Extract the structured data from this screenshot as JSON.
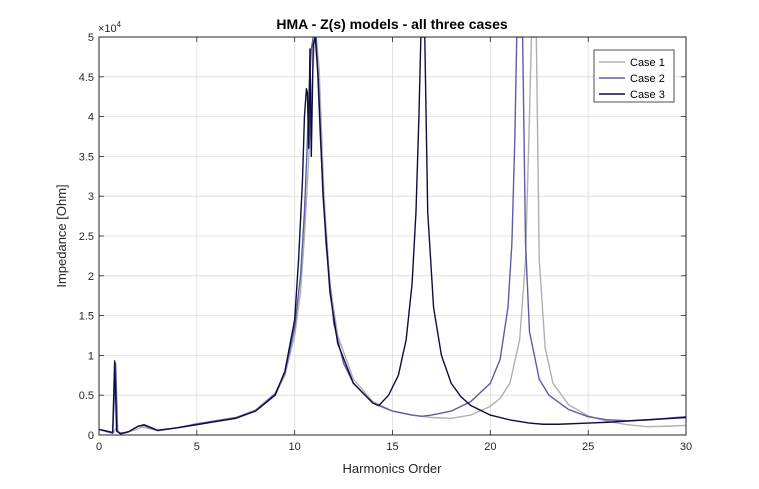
{
  "chart_data": {
    "type": "line",
    "title": "HMA - Z(s) models - all three cases",
    "xlabel": "Harmonics Order",
    "ylabel": "Impedance [Ohm]",
    "xlim": [
      0,
      30
    ],
    "ylim": [
      0,
      50000
    ],
    "y_exponent_base": "×10",
    "y_exponent_power": "4",
    "x_ticks": [
      0,
      5,
      10,
      15,
      20,
      25,
      30
    ],
    "x_tick_labels": [
      "0",
      "5",
      "10",
      "15",
      "20",
      "25",
      "30"
    ],
    "y_ticks": [
      0,
      5000,
      10000,
      15000,
      20000,
      25000,
      30000,
      35000,
      40000,
      45000,
      50000
    ],
    "y_tick_labels": [
      "0",
      "0.5",
      "1",
      "1.5",
      "2",
      "2.5",
      "3",
      "3.5",
      "4",
      "4.5",
      "5"
    ],
    "grid": true,
    "legend_position": "top-right",
    "colors": {
      "case1": "#b0b0b0",
      "case2": "#5c5ca8",
      "case3": "#0d0d40"
    },
    "series": [
      {
        "name": "Case 1",
        "color": "#b0b0b0",
        "points": [
          [
            0,
            700
          ],
          [
            0.4,
            400
          ],
          [
            0.7,
            200
          ],
          [
            0.85,
            800
          ],
          [
            1.0,
            300
          ],
          [
            1.3,
            250
          ],
          [
            1.8,
            600
          ],
          [
            2.2,
            1000
          ],
          [
            2.6,
            800
          ],
          [
            3.0,
            550
          ],
          [
            4.0,
            900
          ],
          [
            5.0,
            1300
          ],
          [
            6.0,
            1700
          ],
          [
            7.0,
            2100
          ],
          [
            8.0,
            3000
          ],
          [
            9.0,
            5000
          ],
          [
            9.5,
            7500
          ],
          [
            10.0,
            12500
          ],
          [
            10.3,
            18000
          ],
          [
            10.5,
            25000
          ],
          [
            10.7,
            34000
          ],
          [
            10.85,
            42000
          ],
          [
            11.0,
            49000
          ],
          [
            11.1,
            50000
          ],
          [
            11.25,
            46000
          ],
          [
            11.5,
            30000
          ],
          [
            11.8,
            19000
          ],
          [
            12.2,
            12500
          ],
          [
            13.0,
            7000
          ],
          [
            14.0,
            4200
          ],
          [
            15.0,
            3000
          ],
          [
            16.0,
            2500
          ],
          [
            17.0,
            2200
          ],
          [
            18.0,
            2100
          ],
          [
            19.0,
            2500
          ],
          [
            20.0,
            3600
          ],
          [
            20.5,
            4600
          ],
          [
            21.0,
            6500
          ],
          [
            21.5,
            12000
          ],
          [
            21.8,
            22000
          ],
          [
            22.0,
            40000
          ],
          [
            22.1,
            50000
          ],
          [
            22.35,
            50000
          ],
          [
            22.5,
            22000
          ],
          [
            22.8,
            11000
          ],
          [
            23.2,
            6500
          ],
          [
            24.0,
            3800
          ],
          [
            25.0,
            2400
          ],
          [
            26.0,
            1700
          ],
          [
            27.0,
            1300
          ],
          [
            28.0,
            1050
          ],
          [
            29.0,
            1100
          ],
          [
            30.0,
            1200
          ]
        ]
      },
      {
        "name": "Case 2",
        "color": "#5c5ca8",
        "points": [
          [
            0,
            700
          ],
          [
            0.4,
            450
          ],
          [
            0.7,
            250
          ],
          [
            0.85,
            9000
          ],
          [
            0.95,
            500
          ],
          [
            1.1,
            200
          ],
          [
            1.5,
            400
          ],
          [
            2.0,
            1100
          ],
          [
            2.3,
            1200
          ],
          [
            2.7,
            800
          ],
          [
            3.0,
            550
          ],
          [
            4.0,
            900
          ],
          [
            5.0,
            1400
          ],
          [
            6.0,
            1800
          ],
          [
            7.0,
            2200
          ],
          [
            8.0,
            3100
          ],
          [
            9.0,
            5200
          ],
          [
            9.5,
            7800
          ],
          [
            10.0,
            13500
          ],
          [
            10.3,
            20000
          ],
          [
            10.5,
            28000
          ],
          [
            10.65,
            37000
          ],
          [
            10.75,
            44000
          ],
          [
            10.85,
            48500
          ],
          [
            10.95,
            50000
          ],
          [
            11.1,
            50000
          ],
          [
            11.3,
            38000
          ],
          [
            11.6,
            24000
          ],
          [
            12.0,
            14000
          ],
          [
            12.5,
            9000
          ],
          [
            13.0,
            6500
          ],
          [
            14.0,
            4000
          ],
          [
            15.0,
            3000
          ],
          [
            16.0,
            2500
          ],
          [
            16.5,
            2350
          ],
          [
            17.0,
            2500
          ],
          [
            18.0,
            3000
          ],
          [
            19.0,
            4200
          ],
          [
            20.0,
            6500
          ],
          [
            20.5,
            9500
          ],
          [
            20.9,
            16000
          ],
          [
            21.1,
            24000
          ],
          [
            21.25,
            37000
          ],
          [
            21.35,
            50000
          ],
          [
            21.65,
            50000
          ],
          [
            21.8,
            24000
          ],
          [
            22.0,
            13000
          ],
          [
            22.5,
            7000
          ],
          [
            23.0,
            5000
          ],
          [
            24.0,
            3200
          ],
          [
            25.0,
            2300
          ],
          [
            26.0,
            1900
          ],
          [
            27.0,
            1800
          ],
          [
            28.0,
            1900
          ],
          [
            29.0,
            2100
          ],
          [
            30.0,
            2300
          ]
        ]
      },
      {
        "name": "Case 3",
        "color": "#0d0d40",
        "points": [
          [
            0,
            700
          ],
          [
            0.4,
            500
          ],
          [
            0.7,
            300
          ],
          [
            0.8,
            9300
          ],
          [
            0.9,
            500
          ],
          [
            1.1,
            150
          ],
          [
            1.5,
            400
          ],
          [
            2.0,
            1100
          ],
          [
            2.3,
            1300
          ],
          [
            2.7,
            900
          ],
          [
            3.0,
            600
          ],
          [
            4.0,
            900
          ],
          [
            5.0,
            1300
          ],
          [
            6.0,
            1700
          ],
          [
            7.0,
            2100
          ],
          [
            8.0,
            3000
          ],
          [
            9.0,
            5000
          ],
          [
            9.5,
            8000
          ],
          [
            10.0,
            14500
          ],
          [
            10.2,
            22000
          ],
          [
            10.4,
            32000
          ],
          [
            10.5,
            40000
          ],
          [
            10.6,
            43500
          ],
          [
            10.65,
            43000
          ],
          [
            10.72,
            36000
          ],
          [
            10.78,
            48500
          ],
          [
            10.85,
            35000
          ],
          [
            10.95,
            49000
          ],
          [
            11.05,
            50000
          ],
          [
            11.2,
            45000
          ],
          [
            11.45,
            30000
          ],
          [
            11.8,
            18000
          ],
          [
            12.2,
            11500
          ],
          [
            13.0,
            6500
          ],
          [
            14.0,
            4000
          ],
          [
            14.3,
            3700
          ],
          [
            14.8,
            5000
          ],
          [
            15.3,
            7500
          ],
          [
            15.7,
            12000
          ],
          [
            16.0,
            19000
          ],
          [
            16.2,
            28000
          ],
          [
            16.35,
            40000
          ],
          [
            16.45,
            50000
          ],
          [
            16.65,
            50000
          ],
          [
            16.8,
            28000
          ],
          [
            17.1,
            16000
          ],
          [
            17.5,
            10000
          ],
          [
            18.0,
            6500
          ],
          [
            18.5,
            4800
          ],
          [
            19.0,
            3700
          ],
          [
            20.0,
            2500
          ],
          [
            21.0,
            1900
          ],
          [
            22.0,
            1500
          ],
          [
            22.7,
            1350
          ],
          [
            23.5,
            1350
          ],
          [
            25.0,
            1500
          ],
          [
            26.0,
            1600
          ],
          [
            27.0,
            1750
          ],
          [
            28.0,
            1900
          ],
          [
            29.0,
            2050
          ],
          [
            30.0,
            2200
          ]
        ]
      }
    ]
  }
}
